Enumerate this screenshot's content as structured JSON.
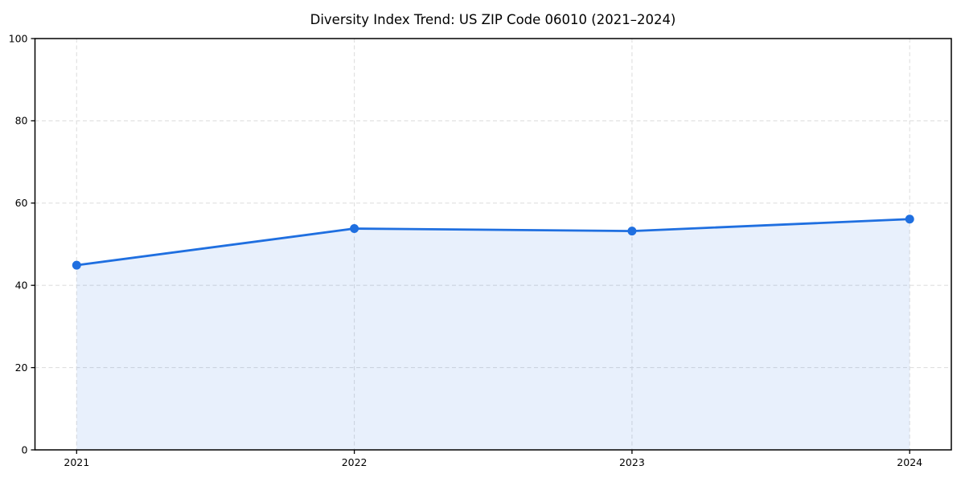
{
  "figure": {
    "title": "Diversity Index Trend: US ZIP Code 06010 (2021–2024)"
  },
  "chart_data": {
    "type": "line",
    "title": "Diversity Index Trend: US ZIP Code 06010 (2021–2024)",
    "xlabel": "",
    "ylabel": "",
    "categories": [
      "2021",
      "2022",
      "2023",
      "2024"
    ],
    "x": [
      2021,
      2022,
      2023,
      2024
    ],
    "series": [
      {
        "name": "Diversity Index",
        "values": [
          44.9,
          53.8,
          53.2,
          56.1
        ]
      }
    ],
    "ylim": [
      0,
      100
    ],
    "y_ticks": [
      0,
      20,
      40,
      60,
      80,
      100
    ],
    "x_tick_labels": [
      "2021",
      "2022",
      "2023",
      "2024"
    ],
    "grid": "dashed",
    "legend_position": "none",
    "area_fill": true,
    "area_fill_span": "between-first-and-last-points",
    "marker": "circle",
    "colors": {
      "line": "#1f6fe0",
      "marker": "#1f6fe0",
      "area": "#1f6fe0",
      "area_opacity": "0.10",
      "grid": "#dfdfdf",
      "spine": "#000000",
      "tick_text": "#000000",
      "background": "#ffffff"
    }
  }
}
